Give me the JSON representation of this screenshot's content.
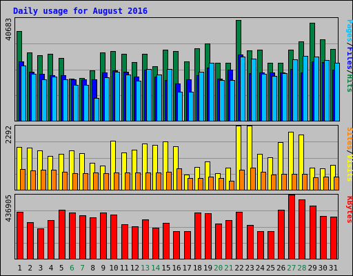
{
  "chart_data": {
    "type": "bar",
    "title": "Daily usage for August 2016",
    "categories": [
      "1",
      "2",
      "3",
      "4",
      "5",
      "6",
      "7",
      "8",
      "9",
      "10",
      "11",
      "12",
      "13",
      "14",
      "15",
      "16",
      "17",
      "18",
      "19",
      "20",
      "21",
      "22",
      "23",
      "24",
      "25",
      "26",
      "27",
      "28",
      "29",
      "30",
      "31"
    ],
    "weekend_categories": [
      "6",
      "7",
      "13",
      "14",
      "20",
      "21",
      "27",
      "28"
    ],
    "panels": [
      {
        "id": "hits-files-pages",
        "ymax": 40683,
        "ymax_label": "40683",
        "legend": [
          {
            "label": "Pages",
            "color": "#00C0FF"
          },
          {
            "label": "/",
            "color": "#000000"
          },
          {
            "label": "Files",
            "color": "#0000FF"
          },
          {
            "label": "/",
            "color": "#000000"
          },
          {
            "label": "Hits",
            "color": "#008040"
          }
        ],
        "series": [
          {
            "name": "Hits",
            "color": "#008040",
            "values": [
              35600,
              27000,
              26000,
              26500,
              24800,
              16600,
              17000,
              20000,
              27000,
              27500,
              26600,
              23200,
              26600,
              21600,
              28200,
              27600,
              23600,
              28600,
              30700,
              22900,
              22900,
              40000,
              27900,
              28200,
              22800,
              22900,
              28200,
              31300,
              38700,
              32300,
              28300
            ]
          },
          {
            "name": "Files",
            "color": "#0000FF",
            "values": [
              23500,
              19500,
              18500,
              18000,
              18000,
              16400,
              16300,
              16300,
              19000,
              19800,
              19400,
              17600,
              20300,
              17600,
              16200,
              14700,
              16400,
              18100,
              21000,
              16600,
              20200,
              26200,
              18900,
              19200,
              19000,
              19000,
              20600,
              19100,
              23400,
              23300,
              20200
            ]
          },
          {
            "name": "Pages",
            "color": "#00C0FF",
            "values": [
              21900,
              18700,
              16500,
              17600,
              16500,
              14300,
              14300,
              8900,
              17100,
              19400,
              18400,
              15800,
              20600,
              18400,
              20600,
              11400,
              11400,
              19400,
              23000,
              16100,
              16100,
              25300,
              24700,
              18700,
              17800,
              18900,
              24400,
              25800,
              25500,
              24000,
              22800
            ]
          }
        ]
      },
      {
        "id": "visits-sites",
        "ymax": 2292,
        "ymax_label": "2292",
        "legend": [
          {
            "label": "Sites",
            "color": "#FF8000"
          },
          {
            "label": "/",
            "color": "#000000"
          },
          {
            "label": "Visits",
            "color": "#FFFF00"
          }
        ],
        "series": [
          {
            "name": "Visits",
            "color": "#FFFF00",
            "values": [
              1540,
              1500,
              1400,
              1210,
              1270,
              1400,
              1310,
              960,
              860,
              1760,
              1320,
              1420,
              1640,
              1600,
              1720,
              1560,
              540,
              810,
              1010,
              590,
              790,
              2290,
              2290,
              1270,
              1170,
              1710,
              2070,
              1980,
              790,
              770,
              890
            ]
          },
          {
            "name": "Sites",
            "color": "#FF8000",
            "values": [
              740,
              690,
              720,
              720,
              640,
              580,
              580,
              620,
              600,
              620,
              620,
              620,
              620,
              620,
              640,
              760,
              420,
              420,
              480,
              420,
              320,
              720,
              800,
              640,
              530,
              570,
              570,
              570,
              440,
              470,
              470
            ]
          }
        ]
      },
      {
        "id": "kbytes",
        "ymax": 436905,
        "ymax_label": "436905",
        "legend": [
          {
            "label": "KBytes",
            "color": "#FF0000"
          }
        ],
        "series": [
          {
            "name": "KBytes",
            "color": "#FF0000",
            "values": [
              320000,
              247000,
              209000,
              263000,
              335000,
              316000,
              298000,
              280000,
              316000,
              302000,
              236000,
              222000,
              268000,
              213000,
              242000,
              187000,
              187000,
              316000,
              311000,
              240000,
              263000,
              320000,
              231000,
              187000,
              187000,
              334000,
              436000,
              405000,
              363000,
              291000,
              288000
            ]
          }
        ]
      }
    ]
  }
}
